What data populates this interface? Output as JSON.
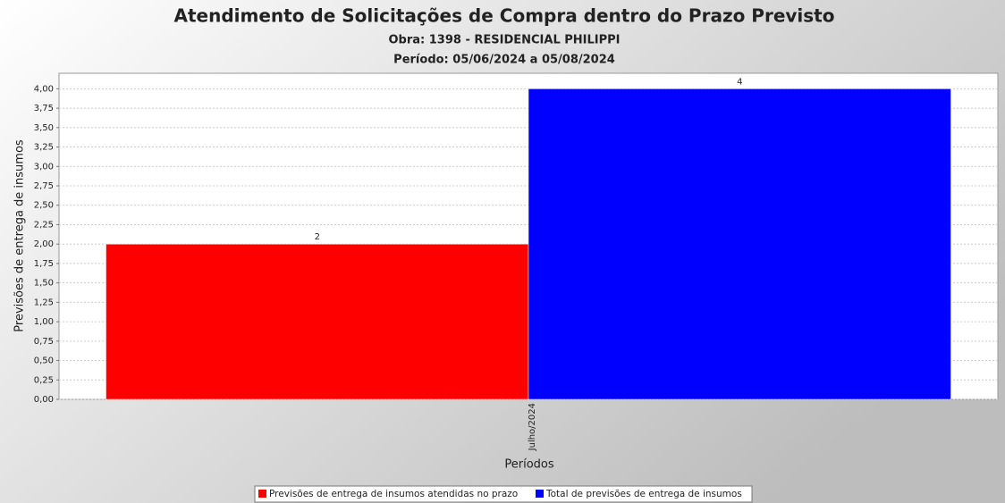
{
  "chart_data": {
    "type": "bar",
    "title": "Atendimento de Solicitações de Compra dentro do Prazo Previsto",
    "subtitle": "Obra: 1398 - RESIDENCIAL PHILIPPI",
    "subtitle2": "Período: 05/06/2024 a 05/08/2024",
    "x_label": "Períodos",
    "y_label": "Previsões de entrega de insumos",
    "categories": [
      "Julho/2024"
    ],
    "series": [
      {
        "name": "Previsões de entrega de insumos atendidas no prazo",
        "color": "#ff0000",
        "values": [
          2
        ]
      },
      {
        "name": "Total de previsões de entrega de insumos",
        "color": "#0000ff",
        "values": [
          4
        ]
      }
    ],
    "ylim": [
      0,
      4.2
    ],
    "yticks": [
      {
        "value": 0,
        "label": "0,00"
      },
      {
        "value": 0.25,
        "label": "0,25"
      },
      {
        "value": 0.5,
        "label": "0,50"
      },
      {
        "value": 0.75,
        "label": "0,75"
      },
      {
        "value": 1,
        "label": "1,00"
      },
      {
        "value": 1.25,
        "label": "1,25"
      },
      {
        "value": 1.5,
        "label": "1,50"
      },
      {
        "value": 1.75,
        "label": "1,75"
      },
      {
        "value": 2,
        "label": "2,00"
      },
      {
        "value": 2.25,
        "label": "2,25"
      },
      {
        "value": 2.5,
        "label": "2,50"
      },
      {
        "value": 2.75,
        "label": "2,75"
      },
      {
        "value": 3,
        "label": "3,00"
      },
      {
        "value": 3.25,
        "label": "3,25"
      },
      {
        "value": 3.5,
        "label": "3,50"
      },
      {
        "value": 3.75,
        "label": "3,75"
      },
      {
        "value": 4,
        "label": "4,00"
      }
    ],
    "grid": true,
    "legend": "bottom"
  }
}
